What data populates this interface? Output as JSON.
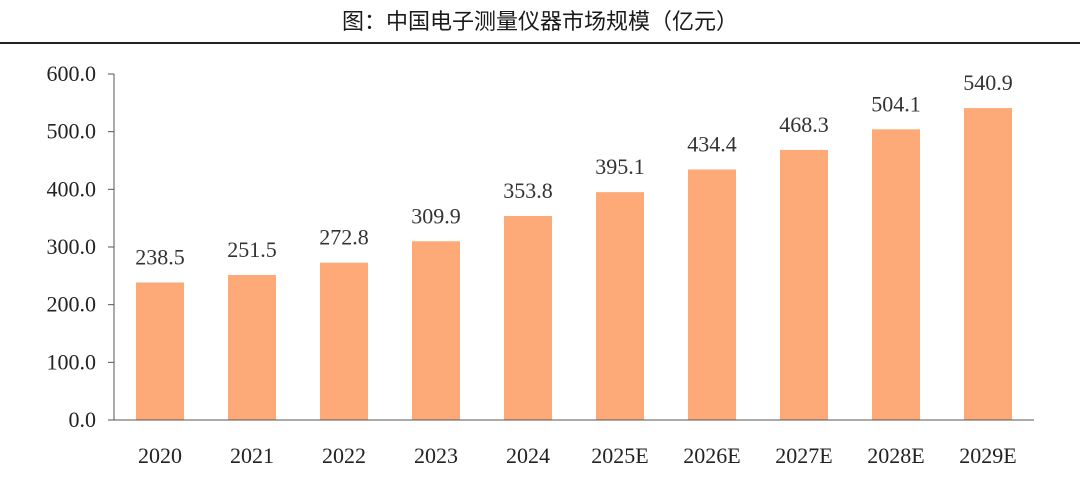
{
  "chart_data": {
    "type": "bar",
    "title": "图：中国电子测量仪器市场规模（亿元）",
    "categories": [
      "2020",
      "2021",
      "2022",
      "2023",
      "2024",
      "2025E",
      "2026E",
      "2027E",
      "2028E",
      "2029E"
    ],
    "values": [
      238.5,
      251.5,
      272.8,
      309.9,
      353.8,
      395.1,
      434.4,
      468.3,
      504.1,
      540.9
    ],
    "data_labels": [
      "238.5",
      "251.5",
      "272.8",
      "309.9",
      "353.8",
      "395.1",
      "434.4",
      "468.3",
      "504.1",
      "540.9"
    ],
    "yticks": [
      "0.0",
      "100.0",
      "200.0",
      "300.0",
      "400.0",
      "500.0",
      "600.0"
    ],
    "ylim": [
      0,
      600
    ],
    "xlabel": "",
    "ylabel": "",
    "grid": false,
    "legend": "none",
    "bar_color": "#FDAA78"
  }
}
